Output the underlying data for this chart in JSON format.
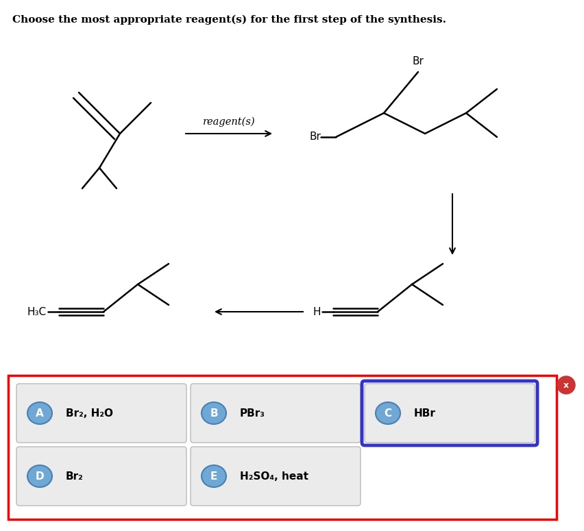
{
  "title": "Choose the most appropriate reagent(s) for the first step of the synthesis.",
  "title_fontsize": 11,
  "bg_color": "#ffffff",
  "reagent_label": "reagent(s)",
  "answer_options": [
    {
      "label": "A",
      "text": "Br₂, H₂O",
      "selected": false
    },
    {
      "label": "B",
      "text": "PBr₃",
      "selected": false
    },
    {
      "label": "C",
      "text": "HBr",
      "selected": true
    },
    {
      "label": "D",
      "text": "Br₂",
      "selected": false
    },
    {
      "label": "E",
      "text": "H₂SO₄, heat",
      "selected": false
    }
  ]
}
